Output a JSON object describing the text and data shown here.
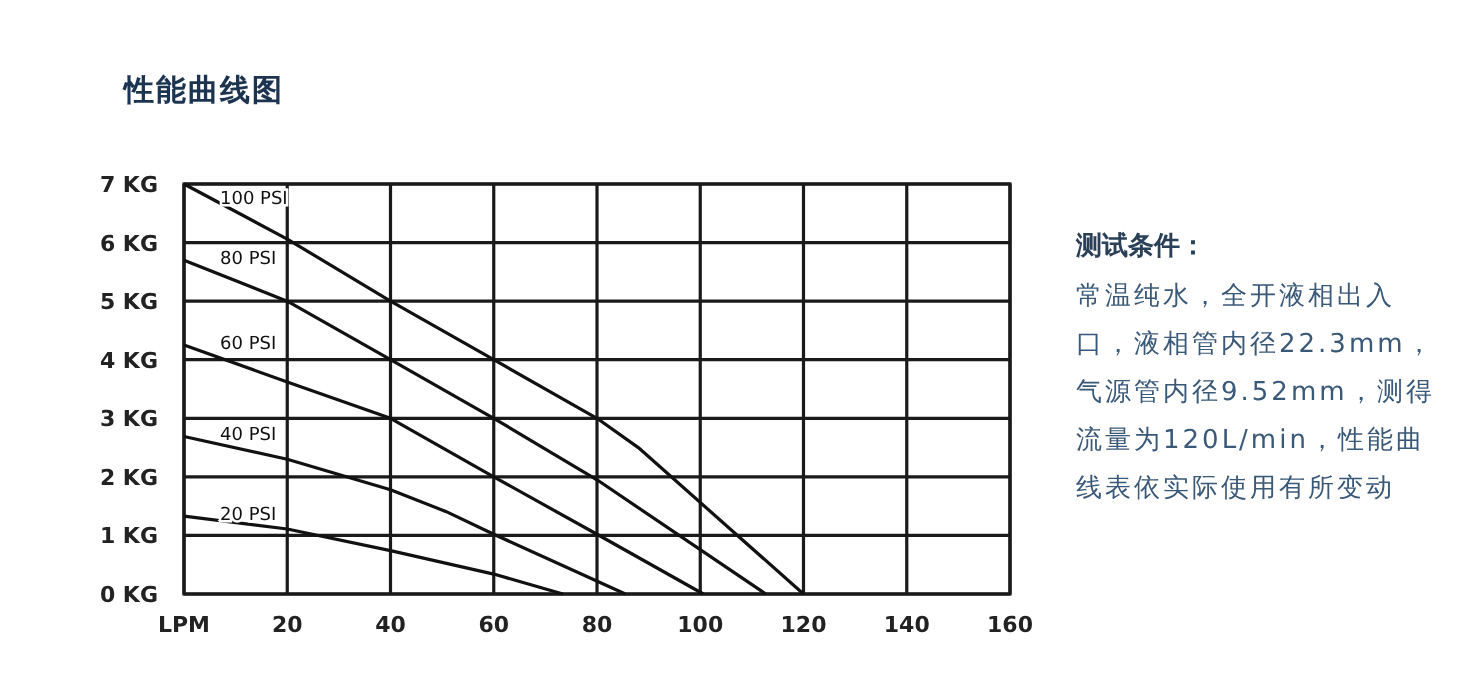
{
  "chart_data": {
    "type": "line",
    "title": "性能曲线图",
    "xlim": [
      0,
      160
    ],
    "xticks": [
      {
        "value": 0,
        "label": "LPM"
      },
      20,
      40,
      60,
      80,
      100,
      120,
      140,
      160
    ],
    "ylim": [
      0,
      7
    ],
    "yticks": [
      {
        "value": 0,
        "label": "0 KG"
      },
      {
        "value": 1,
        "label": "1 KG"
      },
      {
        "value": 2,
        "label": "2 KG"
      },
      {
        "value": 3,
        "label": "3 KG"
      },
      {
        "value": 4,
        "label": "4 KG"
      },
      {
        "value": 5,
        "label": "5 KG"
      },
      {
        "value": 6,
        "label": "6 KG"
      },
      {
        "value": 7,
        "label": "7 KG"
      }
    ],
    "grid": true,
    "legend": false,
    "marker": "none",
    "line_style": "solid",
    "series": [
      {
        "name": "100 PSI",
        "color": "#111111",
        "x": [
          0,
          20,
          40,
          60,
          80,
          88,
          120
        ],
        "values": [
          7,
          6.06,
          5.0,
          4.0,
          3.0,
          2.5,
          0
        ]
      },
      {
        "name": "80 PSI",
        "color": "#111111",
        "x": [
          0,
          20,
          40,
          60,
          80,
          112.7
        ],
        "values": [
          5.7,
          5.0,
          4.0,
          3.0,
          1.95,
          0
        ]
      },
      {
        "name": "60 PSI",
        "color": "#111111",
        "x": [
          0,
          20,
          40,
          60,
          80,
          100.6
        ],
        "values": [
          4.25,
          3.62,
          3.0,
          2.0,
          1.02,
          0
        ]
      },
      {
        "name": "40 PSI",
        "color": "#111111",
        "x": [
          0,
          20,
          40,
          50.7,
          60,
          85.5
        ],
        "values": [
          2.69,
          2.3,
          1.78,
          1.41,
          1.02,
          0
        ]
      },
      {
        "name": "20 PSI",
        "color": "#111111",
        "x": [
          0,
          20,
          40,
          60,
          73.4
        ],
        "values": [
          1.33,
          1.11,
          0.74,
          0.34,
          0
        ]
      }
    ],
    "annotations": [
      "测试条件：",
      "常温纯水，全开液相出入口，液相管内径22.3mm，气源管内径9.52mm，测得流量为120L/min，性能曲线表依实际使用有所变动"
    ]
  }
}
